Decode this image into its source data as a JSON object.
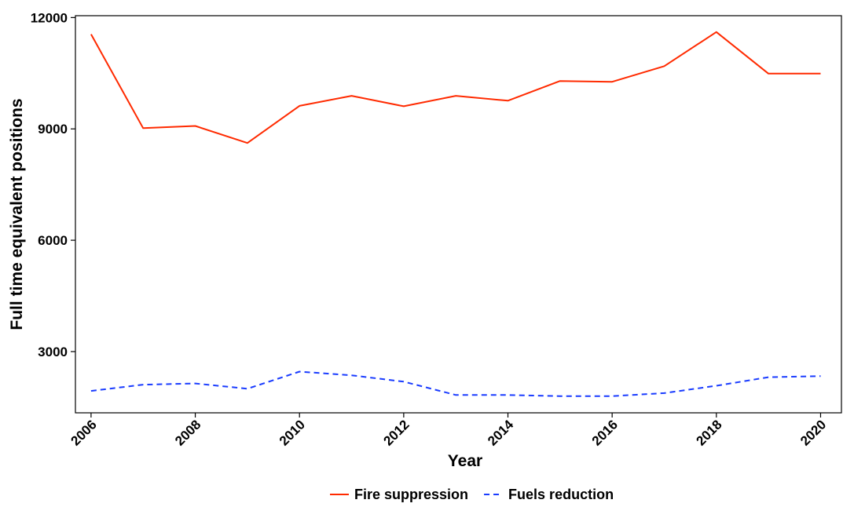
{
  "chart_data": {
    "type": "line",
    "xlabel": "Year",
    "ylabel": "Full time equivalent positions",
    "xlim": [
      2005.7,
      2020.4
    ],
    "ylim": [
      1350,
      12050
    ],
    "x_ticks": [
      2006,
      2008,
      2010,
      2012,
      2014,
      2016,
      2018,
      2020
    ],
    "y_ticks": [
      3000,
      6000,
      9000,
      12000
    ],
    "grid": false,
    "legend_position": "bottom",
    "x": [
      2006,
      2007,
      2008,
      2009,
      2010,
      2011,
      2012,
      2013,
      2014,
      2015,
      2016,
      2017,
      2018,
      2019,
      2020
    ],
    "series": [
      {
        "name": "Fire suppression",
        "color": "#ff2a00",
        "dash": "solid",
        "values": [
          11550,
          9020,
          9080,
          8620,
          9620,
          9890,
          9610,
          9890,
          9760,
          10290,
          10270,
          10690,
          11610,
          10490,
          10490
        ]
      },
      {
        "name": "Fuels reduction",
        "color": "#1a3cff",
        "dash": "dashed",
        "values": [
          1940,
          2110,
          2140,
          2000,
          2460,
          2360,
          2190,
          1830,
          1830,
          1800,
          1800,
          1880,
          2080,
          2310,
          2340
        ]
      }
    ]
  }
}
